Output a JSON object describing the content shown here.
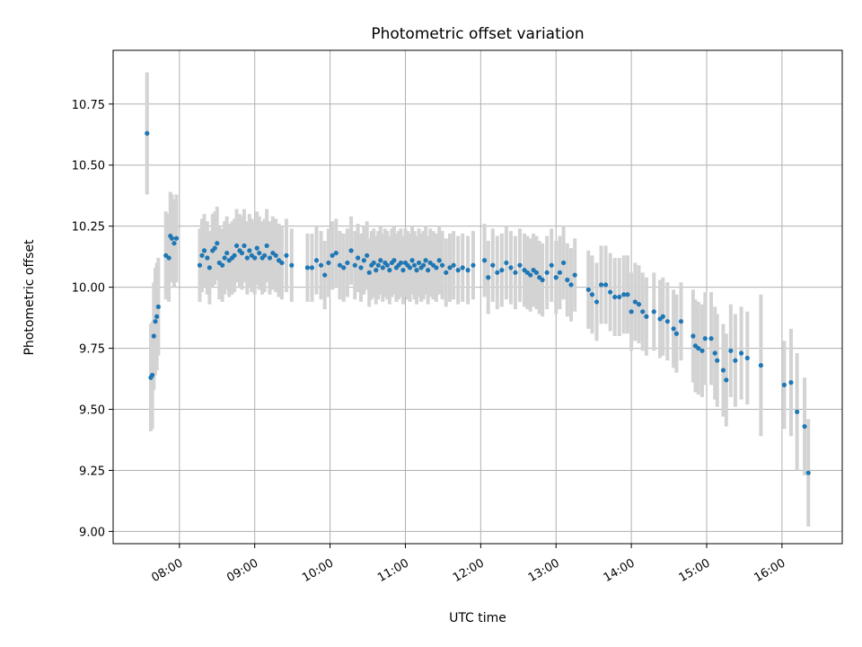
{
  "chart_data": {
    "type": "scatter",
    "title": "Photometric offset variation",
    "xlabel": "UTC time",
    "ylabel": "Photometric offset",
    "x_unit": "UTC hours",
    "xlim": [
      7.12,
      16.8
    ],
    "ylim": [
      8.95,
      10.97
    ],
    "grid": true,
    "x_ticks": [
      8,
      9,
      10,
      11,
      12,
      13,
      14,
      15,
      16
    ],
    "x_tick_labels": [
      "08:00",
      "09:00",
      "10:00",
      "11:00",
      "12:00",
      "13:00",
      "14:00",
      "15:00",
      "16:00"
    ],
    "y_ticks": [
      9.0,
      9.25,
      9.5,
      9.75,
      10.0,
      10.25,
      10.5,
      10.75
    ],
    "y_tick_labels": [
      "9.00",
      "9.25",
      "9.50",
      "9.75",
      "10.00",
      "10.25",
      "10.50",
      "10.75"
    ],
    "colors": {
      "points": "#1f77b4",
      "errorbars": "#d3d3d3",
      "grid": "#b0b0b0"
    },
    "series": [
      {
        "x": [
          7.57,
          7.62,
          7.64,
          7.66,
          7.68,
          7.7,
          7.72,
          7.82,
          7.86,
          7.88,
          7.9,
          7.93,
          7.96,
          8.27,
          8.3,
          8.33,
          8.37,
          8.4,
          8.44,
          8.47,
          8.5,
          8.53,
          8.57,
          8.6,
          8.63,
          8.66,
          8.7,
          8.73,
          8.76,
          8.8,
          8.83,
          8.86,
          8.9,
          8.93,
          8.96,
          9.0,
          9.03,
          9.06,
          9.1,
          9.13,
          9.16,
          9.2,
          9.24,
          9.28,
          9.32,
          9.36,
          9.42,
          9.49,
          9.7,
          9.76,
          9.82,
          9.88,
          9.93,
          9.98,
          10.03,
          10.08,
          10.13,
          10.18,
          10.23,
          10.28,
          10.33,
          10.37,
          10.41,
          10.45,
          10.49,
          10.52,
          10.55,
          10.58,
          10.61,
          10.64,
          10.67,
          10.7,
          10.73,
          10.76,
          10.79,
          10.82,
          10.85,
          10.88,
          10.91,
          10.94,
          10.97,
          11.0,
          11.03,
          11.06,
          11.09,
          11.12,
          11.15,
          11.18,
          11.21,
          11.24,
          11.27,
          11.3,
          11.33,
          11.37,
          11.41,
          11.45,
          11.49,
          11.54,
          11.59,
          11.64,
          11.7,
          11.76,
          11.83,
          11.9,
          12.05,
          12.1,
          12.16,
          12.22,
          12.28,
          12.34,
          12.4,
          12.46,
          12.52,
          12.58,
          12.62,
          12.66,
          12.7,
          12.74,
          12.78,
          12.82,
          12.88,
          12.94,
          13.0,
          13.05,
          13.1,
          13.15,
          13.2,
          13.25,
          13.43,
          13.48,
          13.54,
          13.6,
          13.66,
          13.72,
          13.78,
          13.84,
          13.9,
          13.95,
          14.0,
          14.05,
          14.1,
          14.15,
          14.2,
          14.3,
          14.38,
          14.42,
          14.48,
          14.56,
          14.6,
          14.66,
          14.82,
          14.85,
          14.89,
          14.94,
          14.98,
          15.06,
          15.11,
          15.14,
          15.22,
          15.26,
          15.32,
          15.38,
          15.46,
          15.54,
          15.72,
          16.03,
          16.12,
          16.2,
          16.3,
          16.35
        ],
        "y": [
          10.63,
          9.63,
          9.64,
          9.8,
          9.86,
          9.88,
          9.92,
          10.13,
          10.12,
          10.21,
          10.2,
          10.18,
          10.2,
          10.09,
          10.13,
          10.15,
          10.12,
          10.08,
          10.15,
          10.16,
          10.18,
          10.1,
          10.09,
          10.12,
          10.14,
          10.11,
          10.12,
          10.13,
          10.17,
          10.15,
          10.14,
          10.17,
          10.12,
          10.15,
          10.13,
          10.12,
          10.16,
          10.14,
          10.12,
          10.13,
          10.17,
          10.12,
          10.14,
          10.13,
          10.11,
          10.1,
          10.13,
          10.09,
          10.08,
          10.08,
          10.11,
          10.09,
          10.05,
          10.1,
          10.13,
          10.14,
          10.09,
          10.08,
          10.1,
          10.15,
          10.09,
          10.12,
          10.08,
          10.11,
          10.13,
          10.06,
          10.09,
          10.1,
          10.07,
          10.09,
          10.11,
          10.08,
          10.1,
          10.09,
          10.07,
          10.1,
          10.11,
          10.08,
          10.09,
          10.1,
          10.07,
          10.1,
          10.09,
          10.08,
          10.11,
          10.09,
          10.07,
          10.1,
          10.08,
          10.09,
          10.11,
          10.07,
          10.1,
          10.09,
          10.08,
          10.11,
          10.09,
          10.06,
          10.08,
          10.09,
          10.07,
          10.08,
          10.07,
          10.09,
          10.11,
          10.04,
          10.09,
          10.06,
          10.07,
          10.1,
          10.08,
          10.06,
          10.09,
          10.07,
          10.06,
          10.05,
          10.07,
          10.06,
          10.04,
          10.03,
          10.06,
          10.09,
          10.04,
          10.06,
          10.1,
          10.03,
          10.01,
          10.05,
          9.99,
          9.97,
          9.94,
          10.01,
          10.01,
          9.98,
          9.96,
          9.96,
          9.97,
          9.97,
          9.9,
          9.94,
          9.93,
          9.9,
          9.88,
          9.9,
          9.87,
          9.88,
          9.86,
          9.83,
          9.81,
          9.86,
          9.8,
          9.76,
          9.75,
          9.74,
          9.79,
          9.79,
          9.73,
          9.7,
          9.66,
          9.62,
          9.74,
          9.7,
          9.73,
          9.71,
          9.68,
          9.6,
          9.61,
          9.49,
          9.43,
          9.24
        ],
        "yerr": [
          0.25,
          0.22,
          0.22,
          0.22,
          0.22,
          0.22,
          0.2,
          0.18,
          0.18,
          0.18,
          0.18,
          0.18,
          0.18,
          0.15,
          0.15,
          0.15,
          0.15,
          0.15,
          0.15,
          0.15,
          0.15,
          0.15,
          0.15,
          0.15,
          0.15,
          0.15,
          0.15,
          0.15,
          0.15,
          0.15,
          0.15,
          0.15,
          0.15,
          0.15,
          0.15,
          0.15,
          0.15,
          0.15,
          0.15,
          0.15,
          0.15,
          0.15,
          0.15,
          0.15,
          0.15,
          0.15,
          0.15,
          0.15,
          0.14,
          0.14,
          0.14,
          0.14,
          0.14,
          0.14,
          0.14,
          0.14,
          0.14,
          0.14,
          0.14,
          0.14,
          0.14,
          0.14,
          0.14,
          0.14,
          0.14,
          0.14,
          0.14,
          0.14,
          0.14,
          0.14,
          0.14,
          0.14,
          0.14,
          0.14,
          0.14,
          0.14,
          0.14,
          0.14,
          0.14,
          0.14,
          0.14,
          0.14,
          0.14,
          0.14,
          0.14,
          0.14,
          0.14,
          0.14,
          0.14,
          0.14,
          0.14,
          0.14,
          0.14,
          0.14,
          0.14,
          0.14,
          0.14,
          0.14,
          0.14,
          0.14,
          0.14,
          0.14,
          0.14,
          0.14,
          0.15,
          0.15,
          0.15,
          0.15,
          0.15,
          0.15,
          0.15,
          0.15,
          0.15,
          0.15,
          0.15,
          0.15,
          0.15,
          0.15,
          0.15,
          0.15,
          0.15,
          0.15,
          0.15,
          0.15,
          0.15,
          0.15,
          0.15,
          0.15,
          0.16,
          0.16,
          0.16,
          0.16,
          0.16,
          0.16,
          0.16,
          0.16,
          0.16,
          0.16,
          0.16,
          0.16,
          0.16,
          0.16,
          0.16,
          0.16,
          0.16,
          0.16,
          0.16,
          0.16,
          0.16,
          0.16,
          0.19,
          0.19,
          0.19,
          0.19,
          0.19,
          0.19,
          0.19,
          0.19,
          0.19,
          0.19,
          0.19,
          0.19,
          0.19,
          0.19,
          0.29,
          0.18,
          0.22,
          0.24,
          0.2,
          0.22
        ]
      }
    ]
  }
}
